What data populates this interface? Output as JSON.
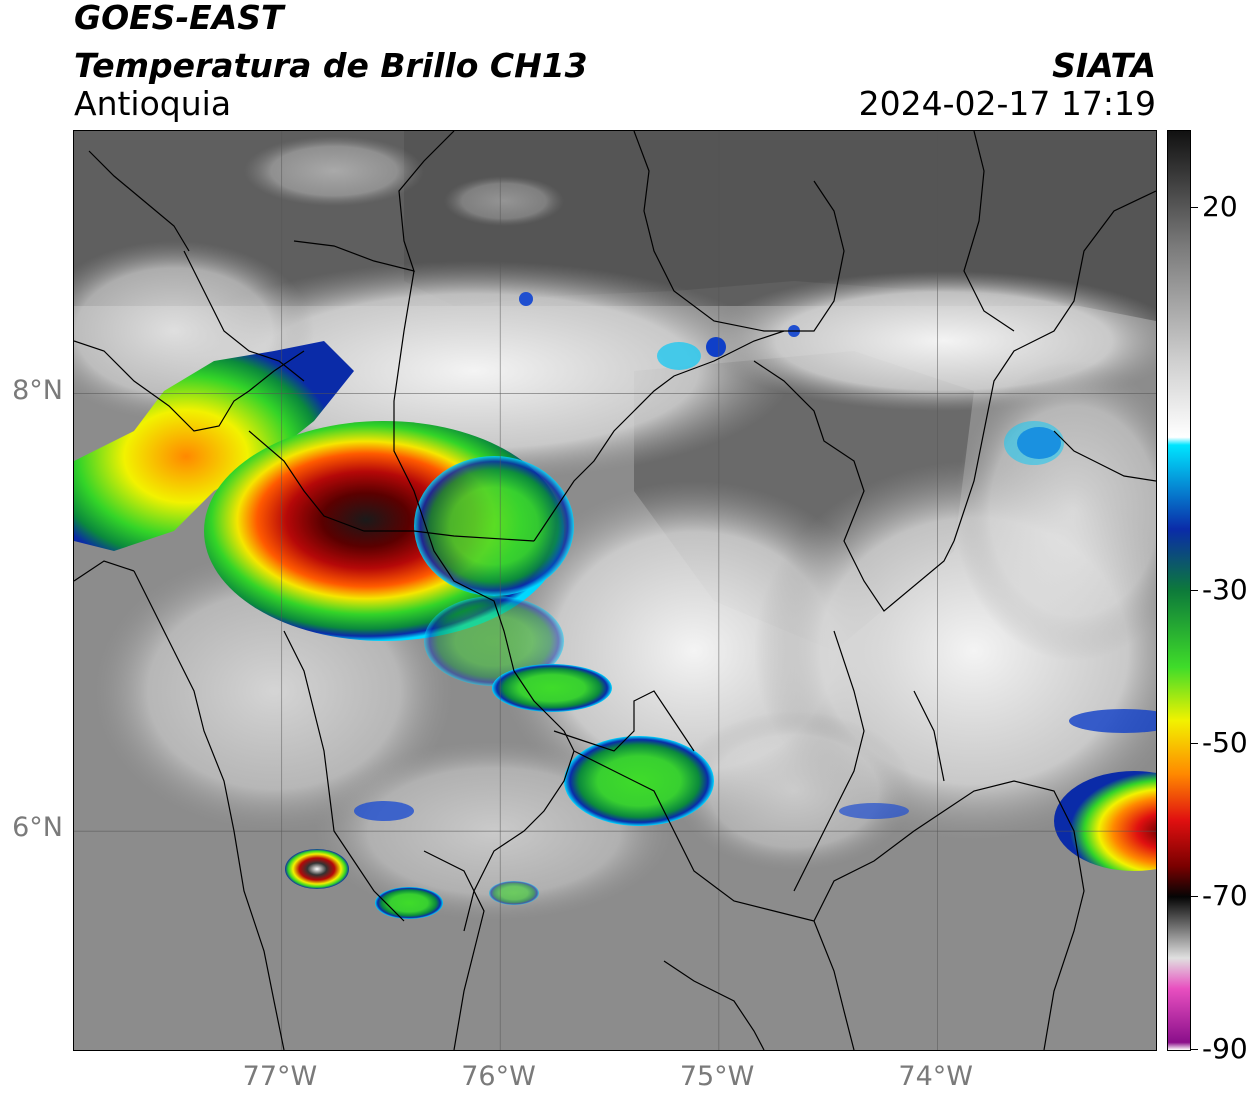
{
  "header": {
    "satellite": "GOES-EAST",
    "product": "Temperatura de Brillo CH13",
    "region": "Antioquia",
    "brand": "SIATA",
    "datetime": "2024-02-17 17:19"
  },
  "map": {
    "lat_ticks": [
      {
        "label": "8°N",
        "lat": 8
      },
      {
        "label": "6°N",
        "lat": 6
      }
    ],
    "lon_ticks": [
      {
        "label": "77°W",
        "lon": -77
      },
      {
        "label": "76°W",
        "lon": -76
      },
      {
        "label": "75°W",
        "lon": -75
      },
      {
        "label": "74°W",
        "lon": -74
      }
    ],
    "extent": {
      "lon_min": -77.95,
      "lon_max": -73.0,
      "lat_min": 5.0,
      "lat_max": 9.2
    },
    "gridlines": true
  },
  "colorbar": {
    "unit_min": -90,
    "unit_max": 30,
    "ticks": [
      {
        "label": "20",
        "value": 20
      },
      {
        "label": "-30",
        "value": -30
      },
      {
        "label": "-50",
        "value": -50
      },
      {
        "label": "-70",
        "value": -70
      },
      {
        "label": "-90",
        "value": -90
      }
    ],
    "stops": [
      {
        "value": 30,
        "color": "#111111"
      },
      {
        "value": 15,
        "color": "#7a7a7a"
      },
      {
        "value": 0,
        "color": "#cfcfcf"
      },
      {
        "value": -10,
        "color": "#ffffff"
      },
      {
        "value": -11,
        "color": "#00e5ff"
      },
      {
        "value": -22,
        "color": "#0a2ba8"
      },
      {
        "value": -30,
        "color": "#0d7a3a"
      },
      {
        "value": -40,
        "color": "#3fdc2a"
      },
      {
        "value": -47,
        "color": "#f2f200"
      },
      {
        "value": -54,
        "color": "#ff8800"
      },
      {
        "value": -60,
        "color": "#e01010"
      },
      {
        "value": -66,
        "color": "#7a0000"
      },
      {
        "value": -70,
        "color": "#050505"
      },
      {
        "value": -78,
        "color": "#e0e0e0"
      },
      {
        "value": -82,
        "color": "#e84fc0"
      },
      {
        "value": -89,
        "color": "#8a0f8a"
      },
      {
        "value": -90,
        "color": "#ffffff"
      }
    ]
  }
}
